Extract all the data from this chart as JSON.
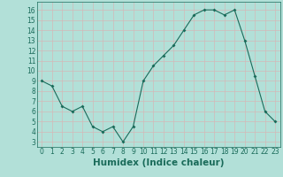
{
  "x": [
    0,
    1,
    2,
    3,
    4,
    5,
    6,
    7,
    8,
    9,
    10,
    11,
    12,
    13,
    14,
    15,
    16,
    17,
    18,
    19,
    20,
    21,
    22,
    23
  ],
  "y": [
    9.0,
    8.5,
    6.5,
    6.0,
    6.5,
    4.5,
    4.0,
    4.5,
    3.0,
    4.5,
    9.0,
    10.5,
    11.5,
    12.5,
    14.0,
    15.5,
    16.0,
    16.0,
    15.5,
    16.0,
    13.0,
    9.5,
    6.0,
    5.0
  ],
  "line_color": "#1a6b5a",
  "marker_color": "#1a6b5a",
  "bg_color": "#b2e0d8",
  "grid_color": "#d4b8b8",
  "xlabel": "Humidex (Indice chaleur)",
  "xlabel_color": "#1a6b5a",
  "xlim": [
    -0.5,
    23.5
  ],
  "ylim": [
    2.5,
    16.8
  ],
  "yticks": [
    3,
    4,
    5,
    6,
    7,
    8,
    9,
    10,
    11,
    12,
    13,
    14,
    15,
    16
  ],
  "xticks": [
    0,
    1,
    2,
    3,
    4,
    5,
    6,
    7,
    8,
    9,
    10,
    11,
    12,
    13,
    14,
    15,
    16,
    17,
    18,
    19,
    20,
    21,
    22,
    23
  ],
  "tick_label_size": 5.5,
  "xlabel_size": 7.5
}
